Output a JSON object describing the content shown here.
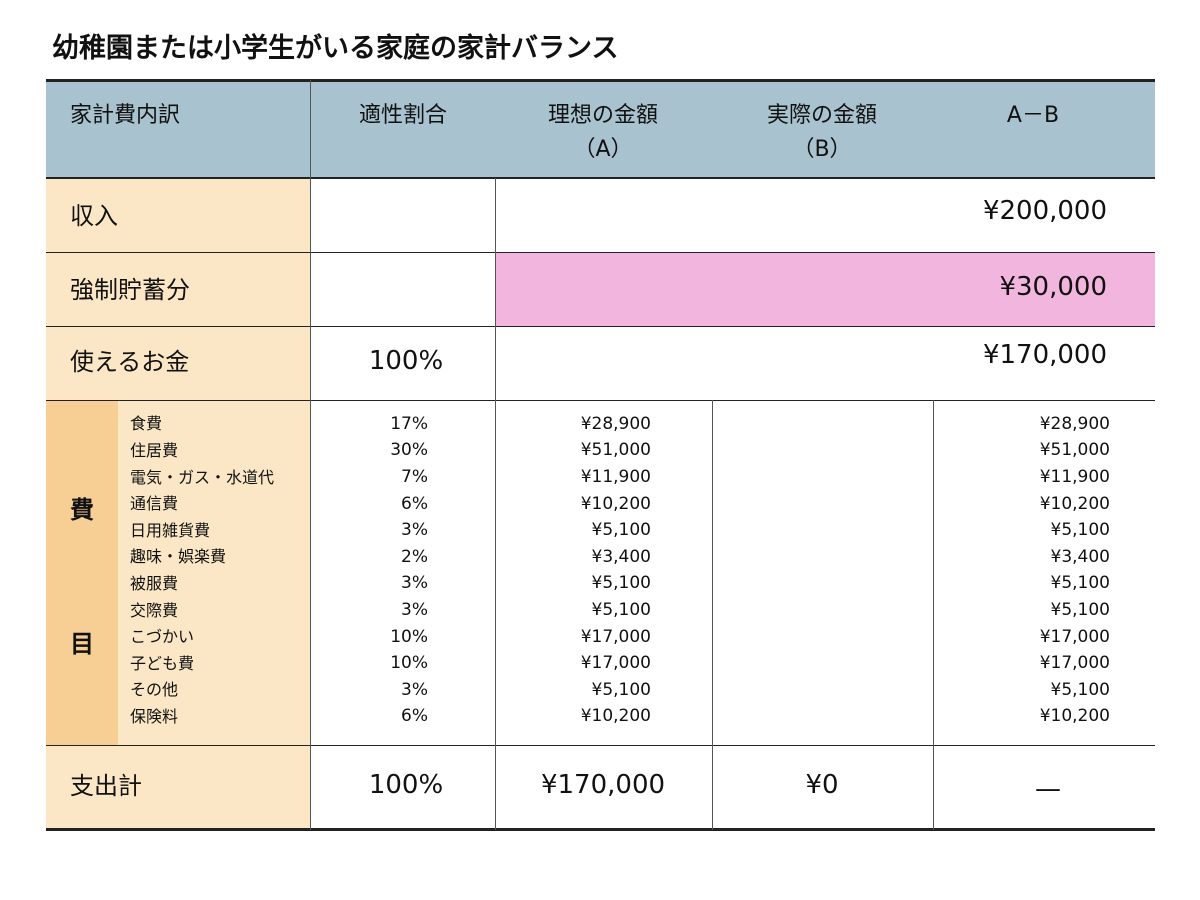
{
  "title": "幼稚園または小学生がいる家庭の家計バランス",
  "header": [
    [
      "家計費内訳"
    ],
    [
      "適性割合"
    ],
    [
      "理想の金額",
      "（A）"
    ],
    [
      "実際の金額",
      "（B）"
    ],
    [
      "A－B"
    ]
  ],
  "income": {
    "label": "収入",
    "amount": "¥200,000"
  },
  "savings": {
    "label": "強制貯蓄分",
    "amount": "¥30,000"
  },
  "usable": {
    "label": "使えるお金",
    "ratio": "100%",
    "amount": "¥170,000"
  },
  "expenses": {
    "side_label": [
      "費",
      "目"
    ],
    "items": [
      {
        "name": "食費",
        "ratio": "17%",
        "ideal": "¥28,900",
        "diff": "¥28,900"
      },
      {
        "name": "住居費",
        "ratio": "30%",
        "ideal": "¥51,000",
        "diff": "¥51,000"
      },
      {
        "name": "電気・ガス・水道代",
        "ratio": "7%",
        "ideal": "¥11,900",
        "diff": "¥11,900"
      },
      {
        "name": "通信費",
        "ratio": "6%",
        "ideal": "¥10,200",
        "diff": "¥10,200"
      },
      {
        "name": "日用雑貨費",
        "ratio": "3%",
        "ideal": "¥5,100",
        "diff": "¥5,100"
      },
      {
        "name": "趣味・娯楽費",
        "ratio": "2%",
        "ideal": "¥3,400",
        "diff": "¥3,400"
      },
      {
        "name": "被服費",
        "ratio": "3%",
        "ideal": "¥5,100",
        "diff": "¥5,100"
      },
      {
        "name": "交際費",
        "ratio": "3%",
        "ideal": "¥5,100",
        "diff": "¥5,100"
      },
      {
        "name": "こづかい",
        "ratio": "10%",
        "ideal": "¥17,000",
        "diff": "¥17,000"
      },
      {
        "name": "子ども費",
        "ratio": "10%",
        "ideal": "¥17,000",
        "diff": "¥17,000"
      },
      {
        "name": "その他",
        "ratio": "3%",
        "ideal": "¥5,100",
        "diff": "¥5,100"
      },
      {
        "name": "保険料",
        "ratio": "6%",
        "ideal": "¥10,200",
        "diff": "¥10,200"
      }
    ]
  },
  "total": {
    "label": "支出計",
    "ratio": "100%",
    "ideal": "¥170,000",
    "actual": "¥0",
    "diff": "—"
  }
}
